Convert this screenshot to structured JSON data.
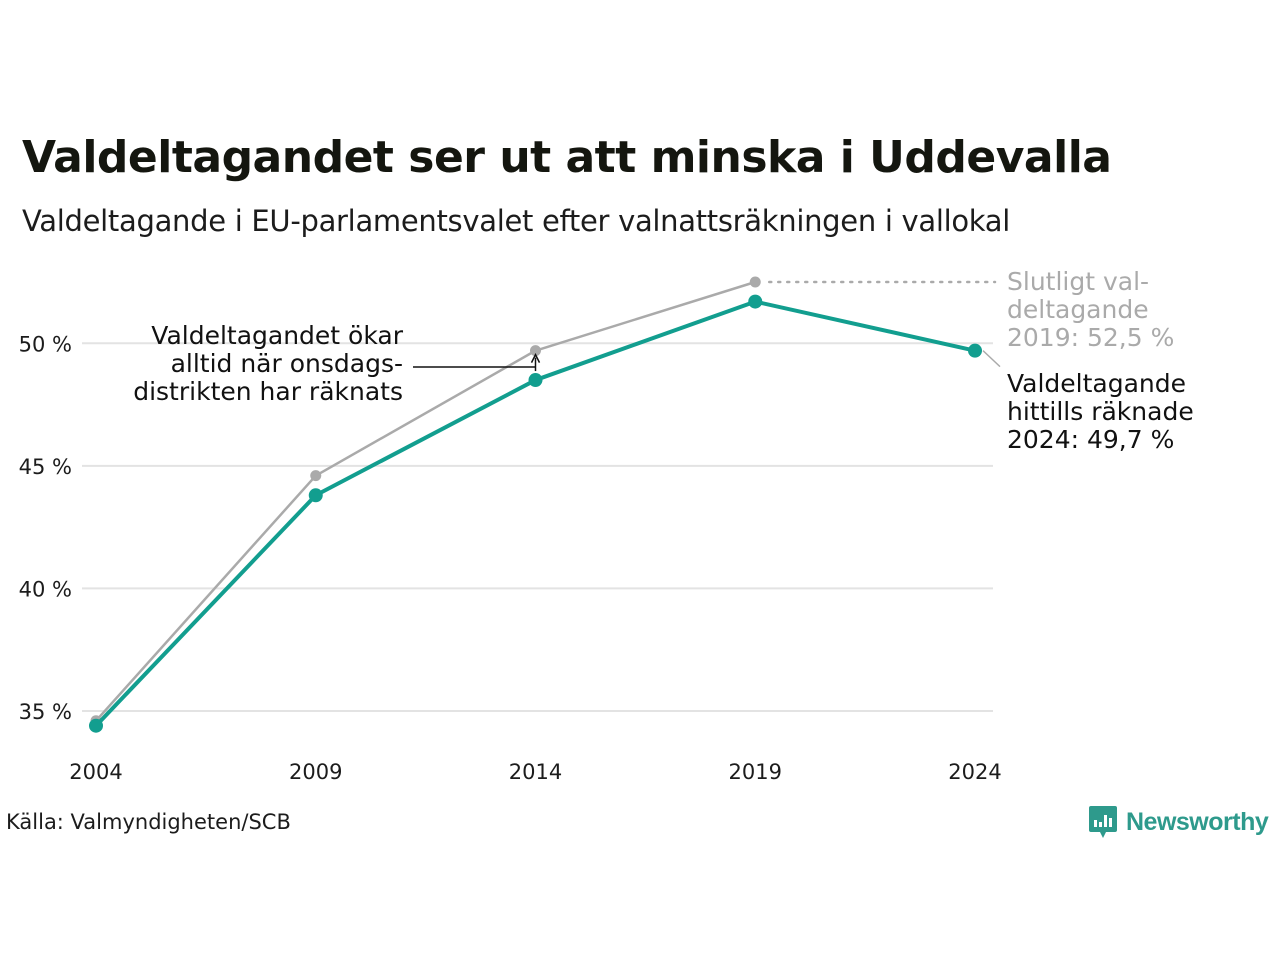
{
  "title": "Valdeltagandet ser ut att minska i Uddevalla",
  "subtitle": "Valdeltagande i EU-parlamentsvalet efter valnattsräkningen i vallokal",
  "source": "Källa: Valmyndigheten/SCB",
  "brand": {
    "name": "Newsworthy",
    "color": "#2e9a8c",
    "icon": "newsworthy-logo-icon"
  },
  "chart_data": {
    "type": "line",
    "x": [
      2004,
      2009,
      2014,
      2019,
      2024
    ],
    "x_tick_labels": [
      "2004",
      "2009",
      "2014",
      "2019",
      "2024"
    ],
    "y_ticks": [
      35,
      40,
      45,
      50
    ],
    "y_tick_labels": [
      "35 %",
      "40 %",
      "45 %",
      "50 %"
    ],
    "ylim": [
      33.5,
      52.8
    ],
    "grid": true,
    "series": [
      {
        "key": "final",
        "color": "#aaaaaa",
        "values": [
          34.6,
          44.6,
          49.7,
          52.5,
          null
        ]
      },
      {
        "key": "counted",
        "color": "#129e8f",
        "values": [
          34.4,
          43.8,
          48.5,
          51.7,
          49.7
        ]
      }
    ],
    "annotations": {
      "note_lines": [
        "Valdeltagandet ökar",
        "alltid när onsdags-",
        "distrikten har räknats"
      ],
      "final_label_lines": [
        "Slutligt val-",
        "deltagande",
        "2019: 52,5 %"
      ],
      "counted_label_lines": [
        "Valdeltagande",
        "hittills räknade",
        "2024: 49,7 %"
      ]
    }
  }
}
